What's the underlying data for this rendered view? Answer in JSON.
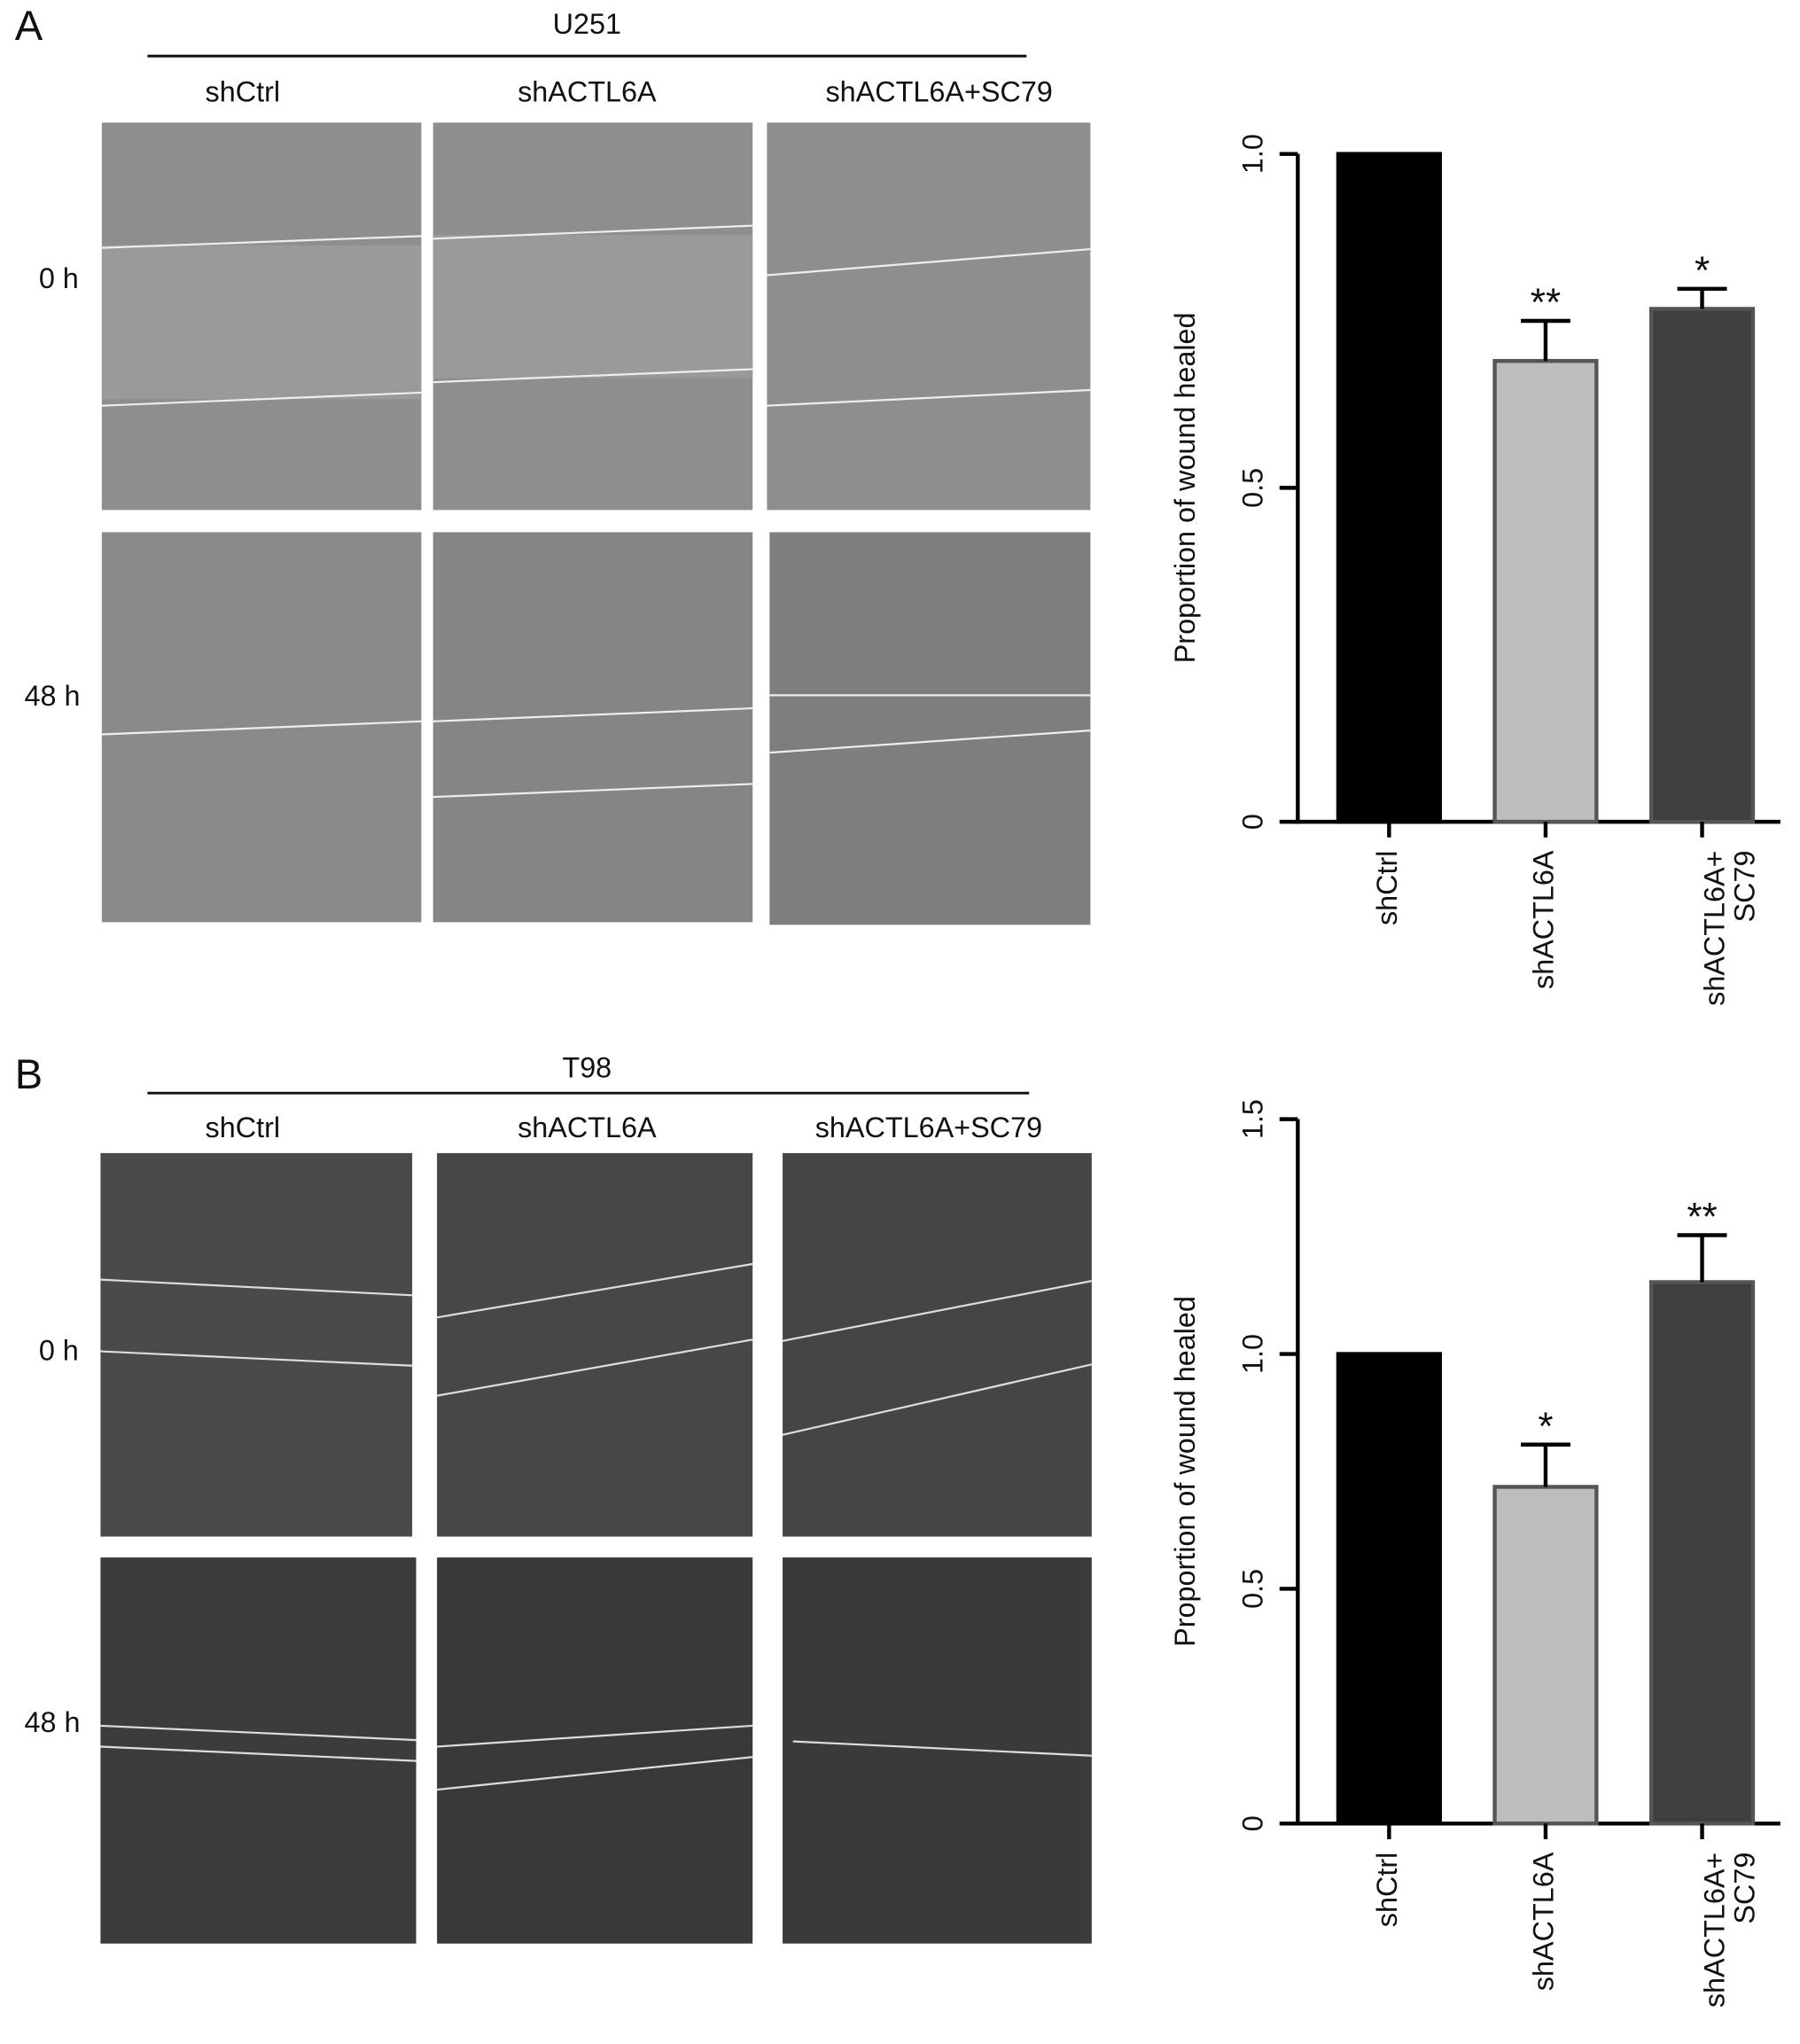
{
  "panels": [
    {
      "label": "A",
      "cell_line": "U251",
      "columns": [
        "shCtrl",
        "shACTL6A",
        "shACTL6A+SC79"
      ],
      "rows": [
        "0 h",
        "48 h"
      ]
    },
    {
      "label": "B",
      "cell_line": "T98",
      "columns": [
        "shCtrl",
        "shACTL6A",
        "shACTL6A+SC79"
      ],
      "rows": [
        "0 h",
        "48 h"
      ]
    }
  ],
  "chart_data": [
    {
      "type": "bar",
      "y_label": "Proportion of wound healed",
      "categories": [
        "shCtrl",
        "shACTL6A",
        "shACTL6A+\nSC79"
      ],
      "values": [
        1.0,
        0.69,
        0.768
      ],
      "errors": [
        null,
        0.06,
        0.03
      ],
      "significance": [
        null,
        "**",
        "*"
      ],
      "colors": [
        "#000000",
        "#bdbdbd",
        "#3f3f3f"
      ],
      "ylim": [
        0,
        1
      ],
      "yticks": [
        0,
        0.5,
        {
          "value": 1,
          "label": "1.0"
        }
      ]
    },
    {
      "type": "bar",
      "y_label": "Proportion of wound healed",
      "categories": [
        "shCtrl",
        "shACTL6A",
        "shACTL6A+\nSC79"
      ],
      "values": [
        1.0,
        0.717,
        1.153
      ],
      "errors": [
        null,
        0.09,
        0.1
      ],
      "significance": [
        null,
        "*",
        "**"
      ],
      "colors": [
        "#000000",
        "#bdbdbd",
        "#3f3f3f"
      ],
      "ylim": [
        0,
        1.5
      ],
      "yticks": [
        0,
        0.5,
        {
          "value": 1,
          "label": "1.0"
        },
        1.5
      ]
    }
  ]
}
